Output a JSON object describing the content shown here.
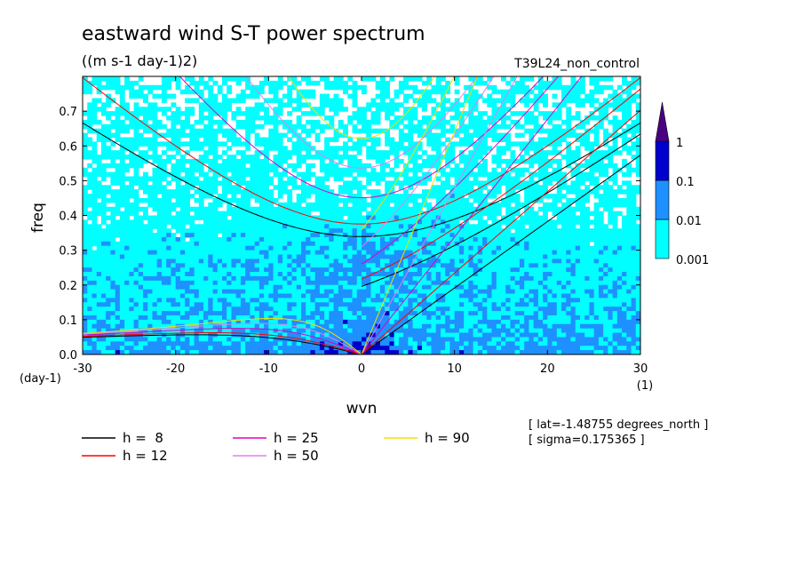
{
  "chart_data": {
    "type": "heatmap",
    "title": "eastward wind S-T power spectrum",
    "units": "((m s-1 day-1)2)",
    "experiment": "T39L24_non_control",
    "xlabel": "wvn",
    "ylabel": "freq",
    "x_unit": "(1)",
    "y_unit": "(day-1)",
    "xlim": [
      -30,
      30
    ],
    "ylim": [
      0,
      0.8
    ],
    "x_ticks": [
      -30,
      -20,
      -10,
      0,
      10,
      20,
      30
    ],
    "x_tick_labels": [
      "-30",
      "-20",
      "-10",
      "0",
      "10",
      "20",
      "30"
    ],
    "y_ticks": [
      0,
      0.1,
      0.2,
      0.3,
      0.4,
      0.5,
      0.6,
      0.7
    ],
    "y_tick_labels": [
      "0.0",
      "0.1",
      "0.2",
      "0.3",
      "0.4",
      "0.5",
      "0.6",
      "0.7"
    ],
    "colorbar": {
      "levels": [
        0.001,
        0.01,
        0.1,
        1
      ],
      "labels": [
        "0.001",
        "0.01",
        "0.1",
        "1"
      ],
      "colors": [
        "#00ffff",
        "#1e90ff",
        "#0000cd",
        "#4b0082"
      ],
      "extend": "max"
    },
    "background_color": "#ffffff",
    "dispersion_curves": [
      {
        "label": "h =  8",
        "h": 8,
        "color": "#000000"
      },
      {
        "label": "h = 12",
        "h": 12,
        "color": "#ff0000"
      },
      {
        "label": "h = 25",
        "h": 25,
        "color": "#e000c0"
      },
      {
        "label": "h = 50",
        "h": 50,
        "color": "#e080f0"
      },
      {
        "label": "h = 90",
        "h": 90,
        "color": "#f0e000"
      }
    ],
    "info_lines": [
      "[ lat=-1.48755 degrees_north ]",
      "[ sigma=0.175365 ]"
    ]
  }
}
